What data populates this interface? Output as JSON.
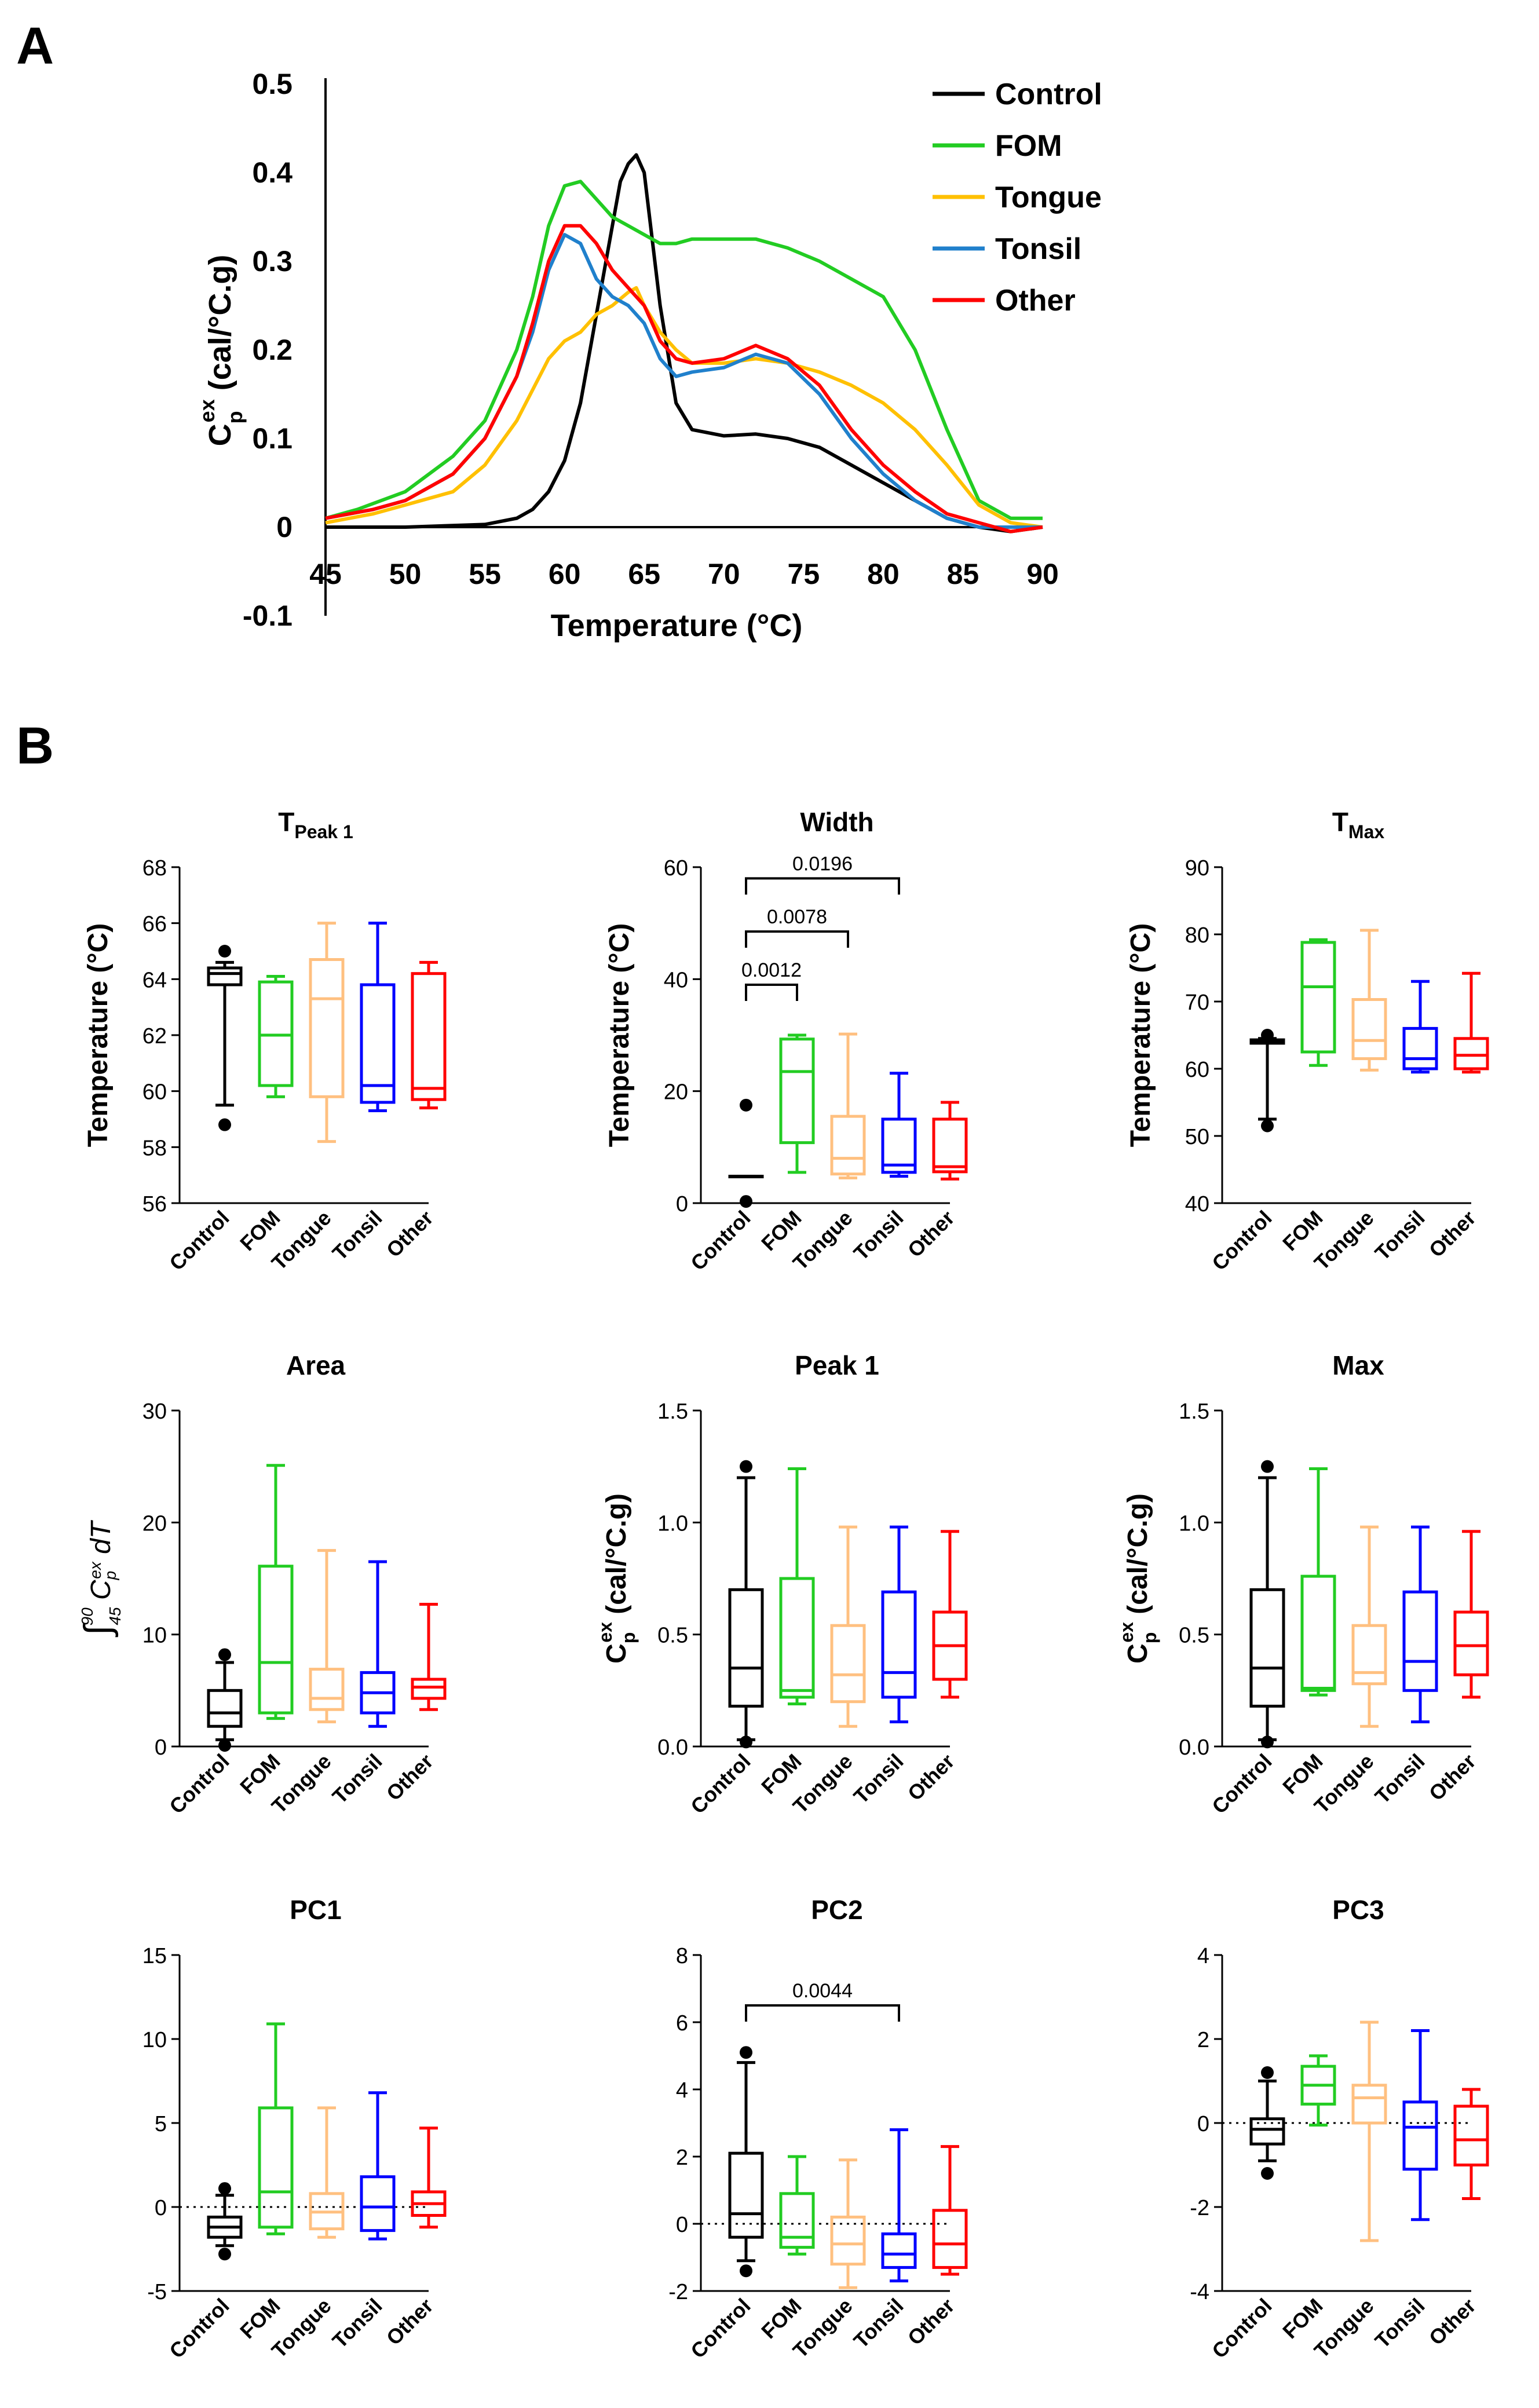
{
  "panel_labels": {
    "a": "A",
    "b": "B"
  },
  "chart_data": [
    {
      "id": "A",
      "type": "line",
      "title": "",
      "xlabel": "Temperature (°C)",
      "ylabel": "C",
      "ylabel_sub": "p",
      "ylabel_sup": "ex",
      "ylabel_rest": " (cal/°C.g)",
      "xlim": [
        45,
        90
      ],
      "ylim": [
        -0.1,
        0.5
      ],
      "xticks": [
        "45",
        "50",
        "55",
        "60",
        "65",
        "70",
        "75",
        "80",
        "85",
        "90"
      ],
      "yticks": [
        "-0.1",
        "0",
        "0.1",
        "0.2",
        "0.3",
        "0.4",
        "0.5"
      ],
      "legend_position": "top-right",
      "series": [
        {
          "name": "Control",
          "color": "#000000",
          "x": [
            45,
            50,
            55,
            57,
            58,
            59,
            60,
            61,
            62,
            63,
            63.5,
            64,
            64.5,
            65,
            66,
            67,
            68,
            70,
            72,
            74,
            76,
            78,
            80,
            82,
            84,
            86,
            88,
            90
          ],
          "y": [
            0,
            0,
            0.003,
            0.01,
            0.02,
            0.04,
            0.075,
            0.14,
            0.24,
            0.34,
            0.39,
            0.41,
            0.42,
            0.4,
            0.25,
            0.14,
            0.11,
            0.103,
            0.105,
            0.1,
            0.09,
            0.07,
            0.05,
            0.03,
            0.01,
            0,
            -0.005,
            0
          ]
        },
        {
          "name": "FOM",
          "color": "#22cc22",
          "x": [
            45,
            47,
            50,
            53,
            55,
            57,
            58,
            59,
            60,
            61,
            62,
            63,
            64,
            65,
            66,
            67,
            68,
            70,
            72,
            74,
            76,
            78,
            80,
            82,
            84,
            86,
            88,
            90
          ],
          "y": [
            0.01,
            0.02,
            0.04,
            0.08,
            0.12,
            0.2,
            0.26,
            0.34,
            0.385,
            0.39,
            0.37,
            0.35,
            0.34,
            0.33,
            0.32,
            0.32,
            0.325,
            0.325,
            0.325,
            0.315,
            0.3,
            0.28,
            0.26,
            0.2,
            0.11,
            0.03,
            0.01,
            0.01
          ]
        },
        {
          "name": "Tongue",
          "color": "#ffc000",
          "x": [
            45,
            48,
            50,
            53,
            55,
            57,
            59,
            60,
            61,
            62,
            63,
            64,
            64.5,
            65,
            66,
            67,
            68,
            70,
            72,
            74,
            76,
            78,
            80,
            82,
            84,
            86,
            88,
            90
          ],
          "y": [
            0.005,
            0.015,
            0.025,
            0.04,
            0.07,
            0.12,
            0.19,
            0.21,
            0.22,
            0.24,
            0.25,
            0.265,
            0.27,
            0.25,
            0.22,
            0.2,
            0.185,
            0.185,
            0.19,
            0.185,
            0.175,
            0.16,
            0.14,
            0.11,
            0.07,
            0.025,
            0.005,
            0
          ]
        },
        {
          "name": "Tonsil",
          "color": "#2080cc",
          "x": [
            45,
            48,
            50,
            53,
            55,
            57,
            58,
            59,
            60,
            61,
            62,
            63,
            64,
            65,
            66,
            67,
            68,
            70,
            72,
            74,
            76,
            78,
            80,
            82,
            84,
            86,
            88,
            90
          ],
          "y": [
            0.01,
            0.02,
            0.03,
            0.06,
            0.1,
            0.17,
            0.22,
            0.29,
            0.33,
            0.32,
            0.28,
            0.26,
            0.25,
            0.23,
            0.19,
            0.17,
            0.175,
            0.18,
            0.195,
            0.185,
            0.15,
            0.1,
            0.06,
            0.03,
            0.01,
            0,
            0,
            0
          ]
        },
        {
          "name": "Other",
          "color": "#ff0000",
          "x": [
            45,
            48,
            50,
            53,
            55,
            57,
            58,
            59,
            60,
            61,
            62,
            63,
            64,
            65,
            66,
            67,
            68,
            70,
            72,
            74,
            76,
            78,
            80,
            82,
            84,
            86,
            88,
            90
          ],
          "y": [
            0.01,
            0.02,
            0.03,
            0.06,
            0.1,
            0.17,
            0.23,
            0.3,
            0.34,
            0.34,
            0.32,
            0.29,
            0.27,
            0.25,
            0.21,
            0.19,
            0.185,
            0.19,
            0.205,
            0.19,
            0.16,
            0.11,
            0.07,
            0.04,
            0.015,
            0.005,
            -0.005,
            0
          ]
        }
      ]
    },
    {
      "id": "tpeak1",
      "type": "box",
      "title": "T",
      "title_sub": "Peak 1",
      "ylabel": "Temperature (°C)",
      "ylim": [
        56,
        68
      ],
      "yticks": [
        "56",
        "58",
        "60",
        "62",
        "64",
        "66",
        "68"
      ],
      "zero_line": false,
      "categories": [
        "Control",
        "FOM",
        "Tongue",
        "Tonsil",
        "Other"
      ],
      "colors": [
        "#000000",
        "#22cc22",
        "#ffc080",
        "#0000ff",
        "#ff0000"
      ],
      "boxes": [
        {
          "min": 59.5,
          "q1": 63.8,
          "median": 64.2,
          "q3": 64.4,
          "max": 64.6,
          "outliers": [
            58.8,
            65
          ]
        },
        {
          "min": 59.8,
          "q1": 60.2,
          "median": 62,
          "q3": 63.9,
          "max": 64.1,
          "outliers": []
        },
        {
          "min": 58.2,
          "q1": 59.8,
          "median": 63.3,
          "q3": 64.7,
          "max": 66,
          "outliers": []
        },
        {
          "min": 59.3,
          "q1": 59.6,
          "median": 60.2,
          "q3": 63.8,
          "max": 66,
          "outliers": []
        },
        {
          "min": 59.4,
          "q1": 59.7,
          "median": 60.1,
          "q3": 64.2,
          "max": 64.6,
          "outliers": []
        }
      ],
      "significance": []
    },
    {
      "id": "width",
      "type": "box",
      "title": "Width",
      "title_sub": "",
      "ylabel": "Temperature (°C)",
      "ylim": [
        0,
        60
      ],
      "yticks": [
        "0",
        "20",
        "40",
        "60"
      ],
      "zero_line": false,
      "categories": [
        "Control",
        "FOM",
        "Tongue",
        "Tonsil",
        "Other"
      ],
      "colors": [
        "#000000",
        "#22cc22",
        "#ffc080",
        "#0000ff",
        "#ff0000"
      ],
      "boxes": [
        {
          "min": 4.8,
          "q1": 4.8,
          "median": 4.8,
          "q3": 4.8,
          "max": 4.8,
          "outliers": [
            0.3,
            17.5
          ]
        },
        {
          "min": 5.5,
          "q1": 10.8,
          "median": 23.5,
          "q3": 29.3,
          "max": 30,
          "outliers": []
        },
        {
          "min": 4.5,
          "q1": 5.2,
          "median": 8,
          "q3": 15.5,
          "max": 30.2,
          "outliers": []
        },
        {
          "min": 4.8,
          "q1": 5.5,
          "median": 6.8,
          "q3": 15,
          "max": 23.2,
          "outliers": []
        },
        {
          "min": 4.3,
          "q1": 5.6,
          "median": 6.5,
          "q3": 15,
          "max": 18,
          "outliers": []
        }
      ],
      "significance": [
        {
          "from": 0,
          "to": 1,
          "label": "0.0012",
          "level": 39
        },
        {
          "from": 0,
          "to": 2,
          "label": "0.0078",
          "level": 48.5
        },
        {
          "from": 0,
          "to": 3,
          "label": "0.0196",
          "level": 58
        }
      ]
    },
    {
      "id": "tmax",
      "type": "box",
      "title": "T",
      "title_sub": "Max",
      "ylabel": "Temperature (°C)",
      "ylim": [
        40,
        90
      ],
      "yticks": [
        "40",
        "50",
        "60",
        "70",
        "80",
        "90"
      ],
      "zero_line": false,
      "categories": [
        "Control",
        "FOM",
        "Tongue",
        "Tonsil",
        "Other"
      ],
      "colors": [
        "#000000",
        "#22cc22",
        "#ffc080",
        "#0000ff",
        "#ff0000"
      ],
      "boxes": [
        {
          "min": 52.5,
          "q1": 63.8,
          "median": 64,
          "q3": 64.3,
          "max": 64.5,
          "outliers": [
            51.5,
            65
          ]
        },
        {
          "min": 60.5,
          "q1": 62.5,
          "median": 72.2,
          "q3": 78.8,
          "max": 79.2,
          "outliers": []
        },
        {
          "min": 59.8,
          "q1": 61.5,
          "median": 64.2,
          "q3": 70.3,
          "max": 80.6,
          "outliers": []
        },
        {
          "min": 59.5,
          "q1": 60,
          "median": 61.5,
          "q3": 66,
          "max": 73,
          "outliers": []
        },
        {
          "min": 59.5,
          "q1": 60,
          "median": 62,
          "q3": 64.5,
          "max": 74.2,
          "outliers": []
        }
      ],
      "significance": []
    },
    {
      "id": "area",
      "type": "box",
      "title": "Area",
      "title_sub": "",
      "ylabel": "integral",
      "ylim": [
        0,
        30
      ],
      "yticks": [
        "0",
        "10",
        "20",
        "30"
      ],
      "zero_line": false,
      "categories": [
        "Control",
        "FOM",
        "Tongue",
        "Tonsil",
        "Other"
      ],
      "colors": [
        "#000000",
        "#22cc22",
        "#ffc080",
        "#0000ff",
        "#ff0000"
      ],
      "boxes": [
        {
          "min": 0.6,
          "q1": 1.8,
          "median": 3,
          "q3": 5,
          "max": 7.5,
          "outliers": [
            0.1,
            8.2
          ]
        },
        {
          "min": 2.5,
          "q1": 3,
          "median": 7.5,
          "q3": 16.1,
          "max": 25.1,
          "outliers": []
        },
        {
          "min": 2.2,
          "q1": 3.3,
          "median": 4.3,
          "q3": 6.9,
          "max": 17.5,
          "outliers": []
        },
        {
          "min": 1.8,
          "q1": 3,
          "median": 4.8,
          "q3": 6.6,
          "max": 16.5,
          "outliers": []
        },
        {
          "min": 3.3,
          "q1": 4.3,
          "median": 5.3,
          "q3": 6,
          "max": 12.7,
          "outliers": []
        }
      ],
      "significance": []
    },
    {
      "id": "peak1",
      "type": "box",
      "title": "Peak 1",
      "title_sub": "",
      "ylabel": "cp",
      "ylim": [
        0,
        1.5
      ],
      "yticks": [
        "0.0",
        "0.5",
        "1.0",
        "1.5"
      ],
      "zero_line": false,
      "categories": [
        "Control",
        "FOM",
        "Tongue",
        "Tonsil",
        "Other"
      ],
      "colors": [
        "#000000",
        "#22cc22",
        "#ffc080",
        "#0000ff",
        "#ff0000"
      ],
      "boxes": [
        {
          "min": 0.03,
          "q1": 0.18,
          "median": 0.35,
          "q3": 0.7,
          "max": 1.2,
          "outliers": [
            0.02,
            1.25
          ]
        },
        {
          "min": 0.19,
          "q1": 0.22,
          "median": 0.25,
          "q3": 0.75,
          "max": 1.24,
          "outliers": []
        },
        {
          "min": 0.09,
          "q1": 0.2,
          "median": 0.32,
          "q3": 0.54,
          "max": 0.98,
          "outliers": []
        },
        {
          "min": 0.11,
          "q1": 0.22,
          "median": 0.33,
          "q3": 0.69,
          "max": 0.98,
          "outliers": []
        },
        {
          "min": 0.22,
          "q1": 0.3,
          "median": 0.45,
          "q3": 0.6,
          "max": 0.96,
          "outliers": []
        }
      ],
      "significance": []
    },
    {
      "id": "max",
      "type": "box",
      "title": "Max",
      "title_sub": "",
      "ylabel": "cp",
      "ylim": [
        0,
        1.5
      ],
      "yticks": [
        "0.0",
        "0.5",
        "1.0",
        "1.5"
      ],
      "zero_line": false,
      "categories": [
        "Control",
        "FOM",
        "Tongue",
        "Tonsil",
        "Other"
      ],
      "colors": [
        "#000000",
        "#22cc22",
        "#ffc080",
        "#0000ff",
        "#ff0000"
      ],
      "boxes": [
        {
          "min": 0.03,
          "q1": 0.18,
          "median": 0.35,
          "q3": 0.7,
          "max": 1.2,
          "outliers": [
            0.02,
            1.25
          ]
        },
        {
          "min": 0.23,
          "q1": 0.25,
          "median": 0.26,
          "q3": 0.76,
          "max": 1.24,
          "outliers": []
        },
        {
          "min": 0.09,
          "q1": 0.28,
          "median": 0.33,
          "q3": 0.54,
          "max": 0.98,
          "outliers": []
        },
        {
          "min": 0.11,
          "q1": 0.25,
          "median": 0.38,
          "q3": 0.69,
          "max": 0.98,
          "outliers": []
        },
        {
          "min": 0.22,
          "q1": 0.32,
          "median": 0.45,
          "q3": 0.6,
          "max": 0.96,
          "outliers": []
        }
      ],
      "significance": []
    },
    {
      "id": "pc1",
      "type": "box",
      "title": "PC1",
      "title_sub": "",
      "ylabel": "",
      "ylim": [
        -5,
        15
      ],
      "yticks": [
        "-5",
        "0",
        "5",
        "10",
        "15"
      ],
      "zero_line": true,
      "categories": [
        "Control",
        "FOM",
        "Tongue",
        "Tonsil",
        "Other"
      ],
      "colors": [
        "#000000",
        "#22cc22",
        "#ffc080",
        "#0000ff",
        "#ff0000"
      ],
      "boxes": [
        {
          "min": -2.3,
          "q1": -1.8,
          "median": -1.2,
          "q3": -0.6,
          "max": 0.7,
          "outliers": [
            -2.8,
            1.1
          ]
        },
        {
          "min": -1.6,
          "q1": -1.2,
          "median": 0.9,
          "q3": 5.9,
          "max": 10.9,
          "outliers": []
        },
        {
          "min": -1.8,
          "q1": -1.3,
          "median": -0.3,
          "q3": 0.8,
          "max": 5.9,
          "outliers": []
        },
        {
          "min": -1.9,
          "q1": -1.4,
          "median": 0,
          "q3": 1.8,
          "max": 6.8,
          "outliers": []
        },
        {
          "min": -1.2,
          "q1": -0.5,
          "median": 0.2,
          "q3": 0.9,
          "max": 4.7,
          "outliers": []
        }
      ],
      "significance": []
    },
    {
      "id": "pc2",
      "type": "box",
      "title": "PC2",
      "title_sub": "",
      "ylabel": "",
      "ylim": [
        -2,
        8
      ],
      "yticks": [
        "-2",
        "0",
        "2",
        "4",
        "6",
        "8"
      ],
      "zero_line": true,
      "categories": [
        "Control",
        "FOM",
        "Tongue",
        "Tonsil",
        "Other"
      ],
      "colors": [
        "#000000",
        "#22cc22",
        "#ffc080",
        "#0000ff",
        "#ff0000"
      ],
      "boxes": [
        {
          "min": -1.1,
          "q1": -0.4,
          "median": 0.3,
          "q3": 2.1,
          "max": 4.8,
          "outliers": [
            -1.4,
            5.1
          ]
        },
        {
          "min": -0.9,
          "q1": -0.7,
          "median": -0.4,
          "q3": 0.9,
          "max": 2,
          "outliers": []
        },
        {
          "min": -1.9,
          "q1": -1.2,
          "median": -0.6,
          "q3": 0.2,
          "max": 1.9,
          "outliers": []
        },
        {
          "min": -1.7,
          "q1": -1.3,
          "median": -0.9,
          "q3": -0.3,
          "max": 2.8,
          "outliers": []
        },
        {
          "min": -1.5,
          "q1": -1.3,
          "median": -0.6,
          "q3": 0.4,
          "max": 2.3,
          "outliers": []
        }
      ],
      "significance": [
        {
          "from": 0,
          "to": 3,
          "label": "0.0044",
          "level": 6.5
        }
      ]
    },
    {
      "id": "pc3",
      "type": "box",
      "title": "PC3",
      "title_sub": "",
      "ylabel": "",
      "ylim": [
        -4,
        4
      ],
      "yticks": [
        "-4",
        "-2",
        "0",
        "2",
        "4"
      ],
      "zero_line": true,
      "categories": [
        "Control",
        "FOM",
        "Tongue",
        "Tonsil",
        "Other"
      ],
      "colors": [
        "#000000",
        "#22cc22",
        "#ffc080",
        "#0000ff",
        "#ff0000"
      ],
      "boxes": [
        {
          "min": -0.9,
          "q1": -0.5,
          "median": -0.15,
          "q3": 0.1,
          "max": 1,
          "outliers": [
            -1.2,
            1.2
          ]
        },
        {
          "min": -0.05,
          "q1": 0.45,
          "median": 0.9,
          "q3": 1.35,
          "max": 1.6,
          "outliers": []
        },
        {
          "min": -2.8,
          "q1": 0,
          "median": 0.6,
          "q3": 0.9,
          "max": 2.4,
          "outliers": []
        },
        {
          "min": -2.3,
          "q1": -1.1,
          "median": -0.1,
          "q3": 0.5,
          "max": 2.2,
          "outliers": []
        },
        {
          "min": -1.8,
          "q1": -1,
          "median": -0.4,
          "q3": 0.4,
          "max": 0.8,
          "outliers": []
        }
      ],
      "significance": []
    }
  ]
}
